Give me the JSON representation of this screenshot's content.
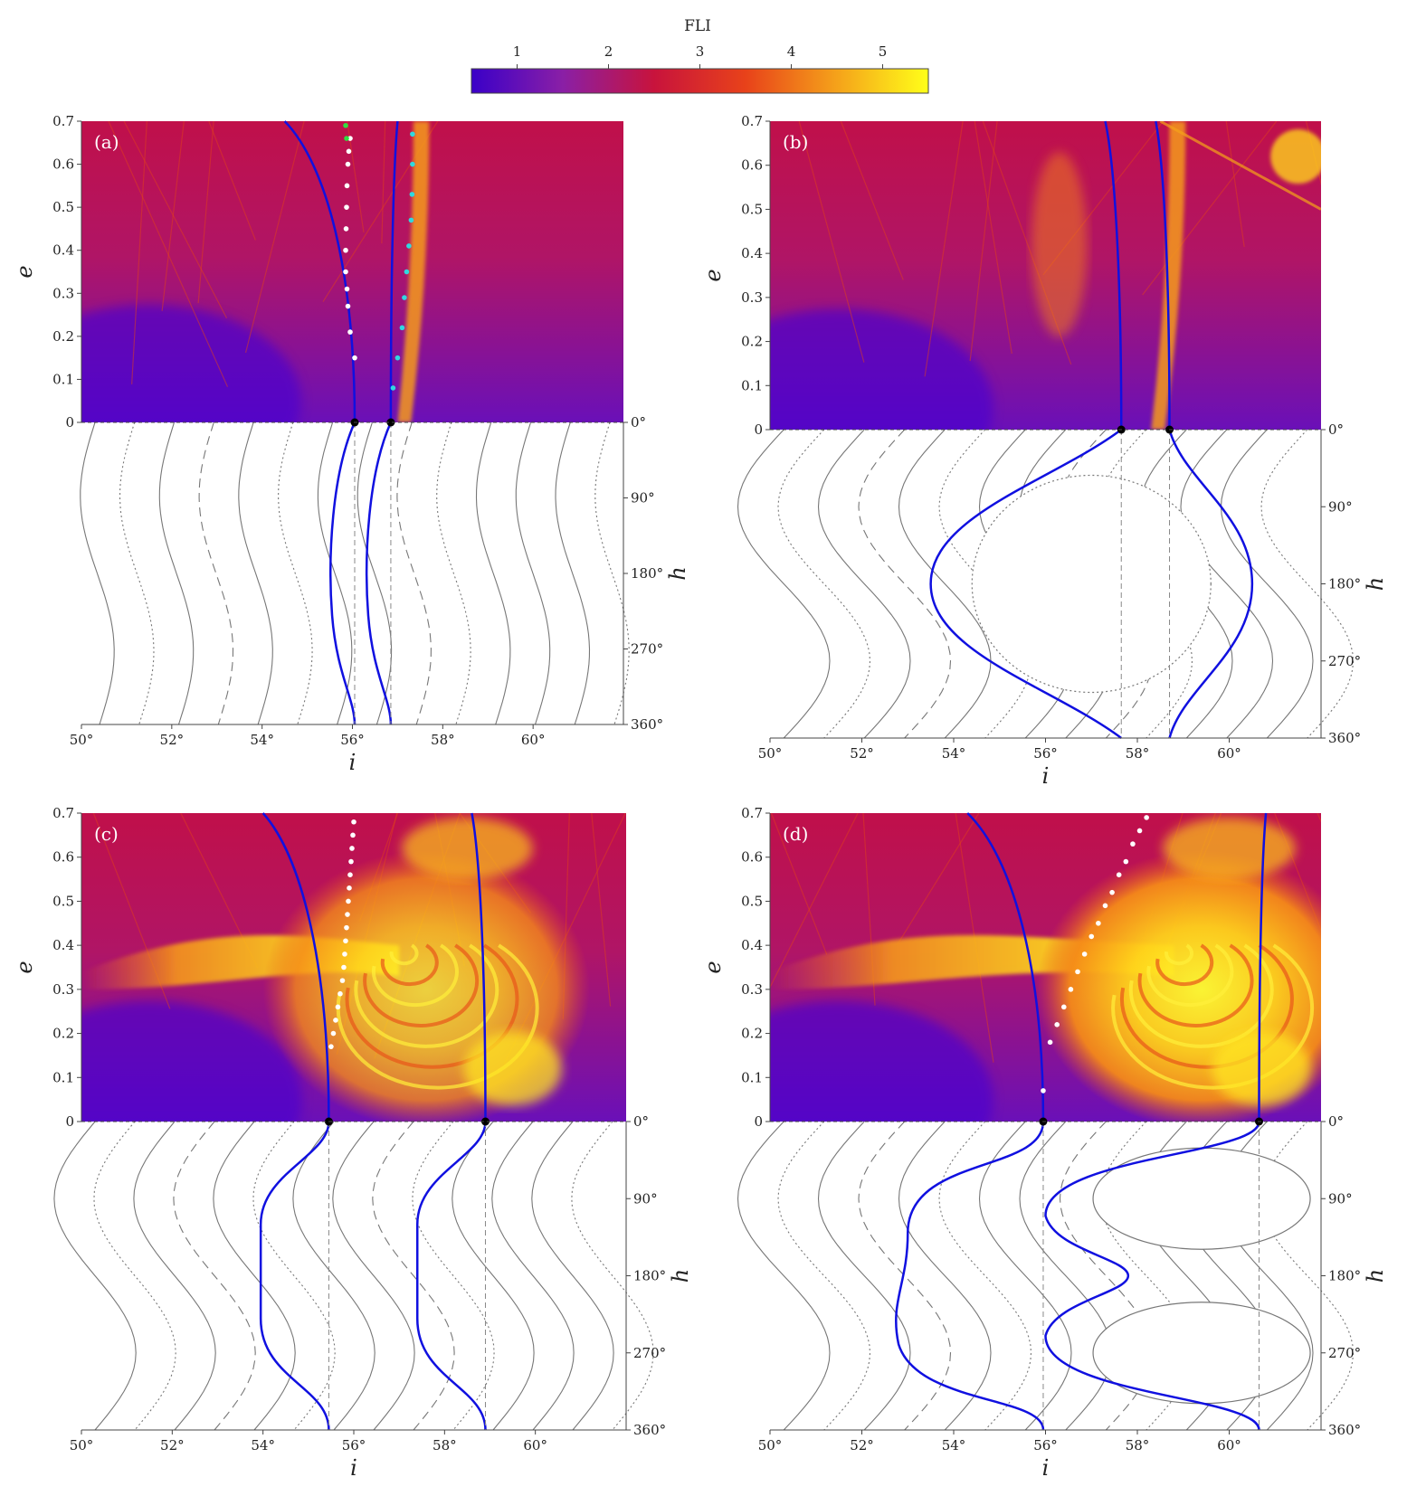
{
  "colorbar": {
    "title": "FLI",
    "ticks": [
      "1",
      "2",
      "3",
      "4",
      "5"
    ],
    "tick_values": [
      1,
      2,
      3,
      4,
      5
    ],
    "range": [
      0.5,
      5.5
    ],
    "colors": [
      "#3a00c8",
      "#8a1fa6",
      "#c8133c",
      "#e8421a",
      "#f5a21a",
      "#ffff19"
    ]
  },
  "chart_data": [
    {
      "type": "heatmap",
      "panel": "(a)",
      "xlabel": "i",
      "ylabel": "e",
      "ylabel2": "h",
      "x_ticks": [
        "50°",
        "52°",
        "54°",
        "56°",
        "58°",
        "60°"
      ],
      "x_tick_values": [
        50,
        52,
        54,
        56,
        58,
        60
      ],
      "xlim": [
        50,
        62
      ],
      "y_ticks": [
        "0",
        "0.1",
        "0.2",
        "0.3",
        "0.4",
        "0.5",
        "0.6",
        "0.7"
      ],
      "y_tick_values": [
        0,
        0.1,
        0.2,
        0.3,
        0.4,
        0.5,
        0.6,
        0.7
      ],
      "ylim": [
        0,
        0.7
      ],
      "h_ticks": [
        "0°",
        "90°",
        "180°",
        "270°",
        "360°"
      ],
      "h_tick_values": [
        0,
        90,
        180,
        270,
        360
      ],
      "separatrix_i_at_e0": [
        56.05,
        56.85
      ],
      "separatrix_e_top_i": [
        54.5,
        57.0
      ],
      "separatrix_h_amplitude": 0.4,
      "white_dots": {
        "i": [
          56.05,
          55.95,
          55.9,
          55.88,
          55.85,
          55.85,
          55.86,
          55.87,
          55.88,
          55.9,
          55.92,
          55.95
        ],
        "e": [
          0.15,
          0.21,
          0.27,
          0.31,
          0.35,
          0.4,
          0.45,
          0.5,
          0.55,
          0.6,
          0.63,
          0.66
        ]
      },
      "cyan_dots": {
        "i": [
          56.9,
          57.0,
          57.1,
          57.15,
          57.2,
          57.25,
          57.3,
          57.32,
          57.33,
          57.33
        ],
        "e": [
          0.08,
          0.15,
          0.22,
          0.29,
          0.35,
          0.41,
          0.47,
          0.53,
          0.6,
          0.67
        ]
      },
      "green_dots": {
        "i": [
          55.85,
          55.87
        ],
        "e": [
          0.69,
          0.66
        ]
      },
      "chaos_level": 0.05
    },
    {
      "type": "heatmap",
      "panel": "(b)",
      "xlabel": "i",
      "ylabel": "e",
      "ylabel2": "h",
      "x_ticks": [
        "50°",
        "52°",
        "54°",
        "56°",
        "58°",
        "60°"
      ],
      "x_tick_values": [
        50,
        52,
        54,
        56,
        58,
        60
      ],
      "xlim": [
        50,
        62
      ],
      "y_ticks": [
        "0",
        "0.1",
        "0.2",
        "0.3",
        "0.4",
        "0.5",
        "0.6",
        "0.7"
      ],
      "y_tick_values": [
        0,
        0.1,
        0.2,
        0.3,
        0.4,
        0.5,
        0.6,
        0.7
      ],
      "ylim": [
        0,
        0.7
      ],
      "h_ticks": [
        "0°",
        "90°",
        "180°",
        "270°",
        "360°"
      ],
      "h_tick_values": [
        0,
        90,
        180,
        270,
        360
      ],
      "separatrix_i_at_e0": [
        57.65,
        58.7
      ],
      "separatrix_e_top_i": [
        57.3,
        58.4
      ],
      "libration_center": {
        "i": 57.0,
        "h": 180
      },
      "separatrix_extent_i": [
        53.5,
        60.5
      ],
      "chaos_level": 0.12
    },
    {
      "type": "heatmap",
      "panel": "(c)",
      "xlabel": "i",
      "ylabel": "e",
      "ylabel2": "h",
      "x_ticks": [
        "50°",
        "52°",
        "54°",
        "56°",
        "58°",
        "60°"
      ],
      "x_tick_values": [
        50,
        52,
        54,
        56,
        58,
        60
      ],
      "xlim": [
        50,
        62
      ],
      "y_ticks": [
        "0",
        "0.1",
        "0.2",
        "0.3",
        "0.4",
        "0.5",
        "0.6",
        "0.7"
      ],
      "y_tick_values": [
        0,
        0.1,
        0.2,
        0.3,
        0.4,
        0.5,
        0.6,
        0.7
      ],
      "ylim": [
        0,
        0.7
      ],
      "h_ticks": [
        "0°",
        "90°",
        "180°",
        "270°",
        "360°"
      ],
      "h_tick_values": [
        0,
        90,
        180,
        270,
        360
      ],
      "separatrix_i_at_e0": [
        55.45,
        58.9
      ],
      "separatrix_e_top_i": [
        54.0,
        58.6
      ],
      "separatrix_h_amplitude": 1.5,
      "white_dots": {
        "i": [
          55.5,
          55.55,
          55.6,
          55.65,
          55.7,
          55.75,
          55.78,
          55.8,
          55.82,
          55.84,
          55.86,
          55.88,
          55.9,
          55.92,
          55.94,
          55.96,
          55.98,
          56.0
        ],
        "e": [
          0.17,
          0.2,
          0.23,
          0.26,
          0.29,
          0.32,
          0.35,
          0.38,
          0.41,
          0.44,
          0.47,
          0.5,
          0.53,
          0.56,
          0.59,
          0.62,
          0.65,
          0.68
        ]
      },
      "chaos_level": 0.8
    },
    {
      "type": "heatmap",
      "panel": "(d)",
      "xlabel": "i",
      "ylabel": "e",
      "ylabel2": "h",
      "x_ticks": [
        "50°",
        "52°",
        "54°",
        "56°",
        "58°",
        "60°"
      ],
      "x_tick_values": [
        50,
        52,
        54,
        56,
        58,
        60
      ],
      "xlim": [
        50,
        62
      ],
      "y_ticks": [
        "0",
        "0.1",
        "0.2",
        "0.3",
        "0.4",
        "0.5",
        "0.6",
        "0.7"
      ],
      "y_tick_values": [
        0,
        0.1,
        0.2,
        0.3,
        0.4,
        0.5,
        0.6,
        0.7
      ],
      "ylim": [
        0,
        0.7
      ],
      "h_ticks": [
        "0°",
        "90°",
        "180°",
        "270°",
        "360°"
      ],
      "h_tick_values": [
        0,
        90,
        180,
        270,
        360
      ],
      "separatrix_i_at_e0": [
        55.95,
        60.65
      ],
      "separatrix_e_top_i": [
        54.3,
        60.8
      ],
      "libration_centers": [
        {
          "i": 59.4,
          "h": 90
        },
        {
          "i": 59.4,
          "h": 270
        }
      ],
      "white_dots": {
        "i": [
          55.95,
          56.1,
          56.25,
          56.4,
          56.55,
          56.7,
          56.85,
          57.0,
          57.15,
          57.3,
          57.45,
          57.6,
          57.75,
          57.9,
          58.05,
          58.2
        ],
        "e": [
          0.07,
          0.18,
          0.22,
          0.26,
          0.3,
          0.34,
          0.38,
          0.42,
          0.45,
          0.49,
          0.52,
          0.56,
          0.59,
          0.63,
          0.66,
          0.69
        ]
      },
      "chaos_level": 0.95
    }
  ]
}
